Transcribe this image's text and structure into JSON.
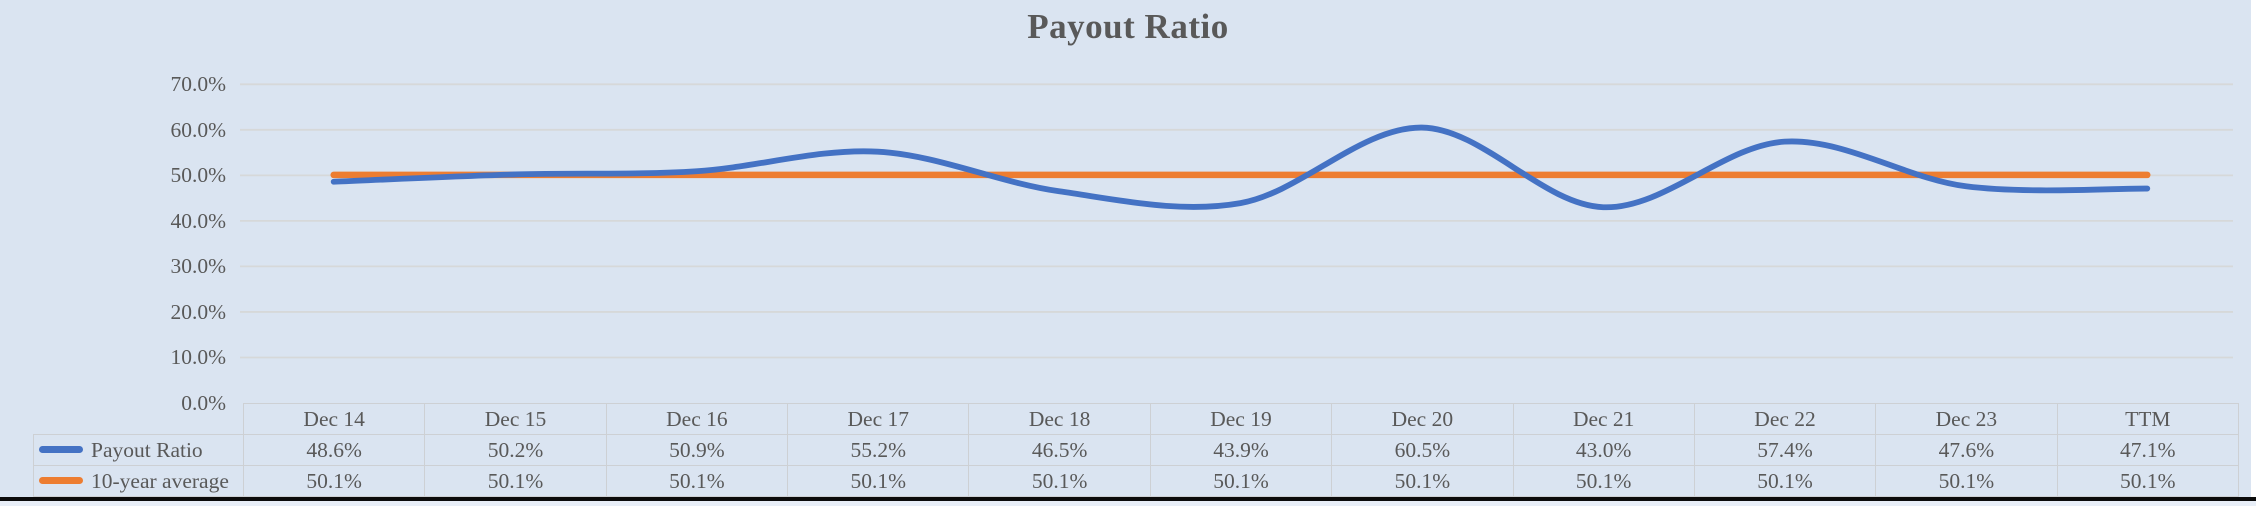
{
  "chart": {
    "title": "Payout Ratio",
    "colors": {
      "background": "#dae4f1",
      "payout_line": "#4472c4",
      "average_line": "#ed7d31",
      "gridline": "#d6d8d9",
      "table_border": "#cdd0d4",
      "text": "#595959",
      "bottom_rule": "#0b0b0b",
      "right_strip": "#ffffff"
    }
  },
  "chart_data": {
    "type": "line",
    "title": "Payout Ratio",
    "categories": [
      "Dec 14",
      "Dec 15",
      "Dec 16",
      "Dec 17",
      "Dec 18",
      "Dec 19",
      "Dec 20",
      "Dec 21",
      "Dec 22",
      "Dec 23",
      "TTM"
    ],
    "series": [
      {
        "name": "Payout Ratio",
        "values": [
          48.6,
          50.2,
          50.9,
          55.2,
          46.5,
          43.9,
          60.5,
          43.0,
          57.4,
          47.6,
          47.1
        ],
        "table_values": [
          "48.6%",
          "50.2%",
          "50.9%",
          "55.2%",
          "46.5%",
          "43.9%",
          "60.5%",
          "43.0%",
          "57.4%",
          "47.6%",
          "47.1%"
        ],
        "color_key": "payout_line",
        "smooth": true
      },
      {
        "name": "10-year average",
        "values": [
          50.1,
          50.1,
          50.1,
          50.1,
          50.1,
          50.1,
          50.1,
          50.1,
          50.1,
          50.1,
          50.1
        ],
        "table_values": [
          "50.1%",
          "50.1%",
          "50.1%",
          "50.1%",
          "50.1%",
          "50.1%",
          "50.1%",
          "50.1%",
          "50.1%",
          "50.1%",
          " 50.1%"
        ],
        "color_key": "average_line",
        "smooth": false
      }
    ],
    "y_ticks": [
      "0.0%",
      "10.0%",
      "20.0%",
      "30.0%",
      "40.0%",
      "50.0%",
      "60.0%",
      "70.0%"
    ],
    "ylim": [
      0,
      70
    ],
    "grid": true,
    "xlabel": "",
    "ylabel": "",
    "legend_position": "table-left"
  }
}
